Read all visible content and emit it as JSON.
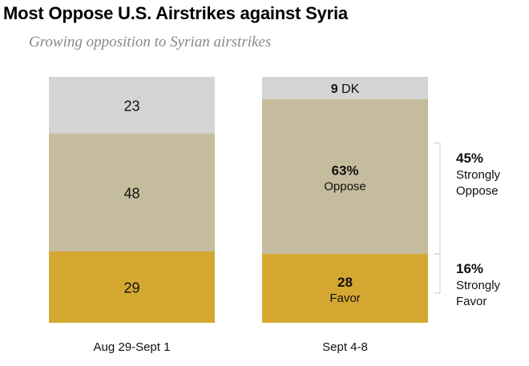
{
  "chart_data": {
    "type": "bar",
    "stacked": true,
    "title": "Most Oppose U.S. Airstrikes against Syria",
    "subtitle": "Growing opposition to Syrian airstrikes",
    "categories": [
      "Aug 29-Sept 1",
      "Sept 4-8"
    ],
    "series": [
      {
        "key": "favor",
        "values": [
          29,
          28
        ],
        "labels": [
          "29",
          "28"
        ],
        "sublabels": [
          "",
          "Favor"
        ],
        "color": "#d4a830"
      },
      {
        "key": "oppose",
        "values": [
          48,
          63
        ],
        "labels": [
          "48",
          "63%"
        ],
        "sublabels": [
          "",
          "Oppose"
        ],
        "color": "#c4bc9c"
      },
      {
        "key": "dk",
        "values": [
          23,
          9
        ],
        "labels": [
          "23",
          "9"
        ],
        "sublabels": [
          "",
          "DK"
        ],
        "color": "#d4d4d4"
      }
    ],
    "annotations": [
      {
        "value": "45%",
        "label": [
          "Strongly",
          "Oppose"
        ],
        "range": [
          28,
          73
        ]
      },
      {
        "value": "16%",
        "label": [
          "Strongly",
          "Favor"
        ],
        "range": [
          12,
          28
        ]
      }
    ],
    "ylim": [
      0,
      100
    ]
  }
}
